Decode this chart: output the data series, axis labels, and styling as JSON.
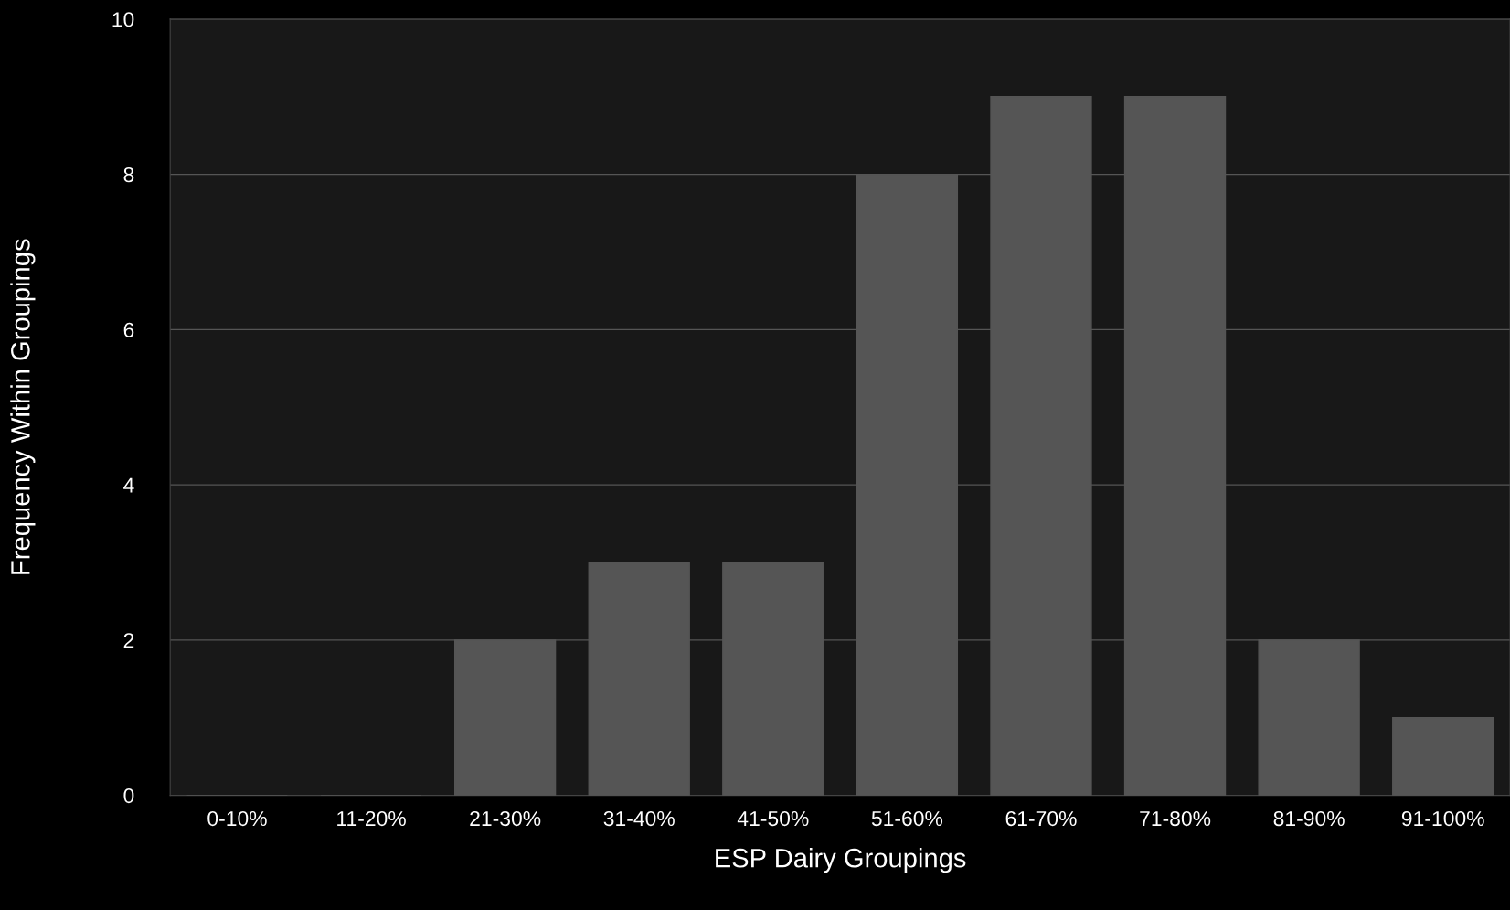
{
  "chart_data": {
    "type": "bar",
    "xlabel": "ESP Dairy Groupings",
    "ylabel": "Frequency Within Groupings",
    "categories": [
      "0-10%",
      "11-20%",
      "21-30%",
      "31-40%",
      "41-50%",
      "51-60%",
      "61-70%",
      "71-80%",
      "81-90%",
      "91-100%"
    ],
    "values": [
      0,
      0,
      2,
      3,
      3,
      8,
      9,
      9,
      2,
      1
    ],
    "color": "#555555",
    "ylim": [
      0,
      10
    ],
    "yticks": [
      0,
      2,
      4,
      6,
      8,
      10
    ],
    "grid": "y"
  }
}
